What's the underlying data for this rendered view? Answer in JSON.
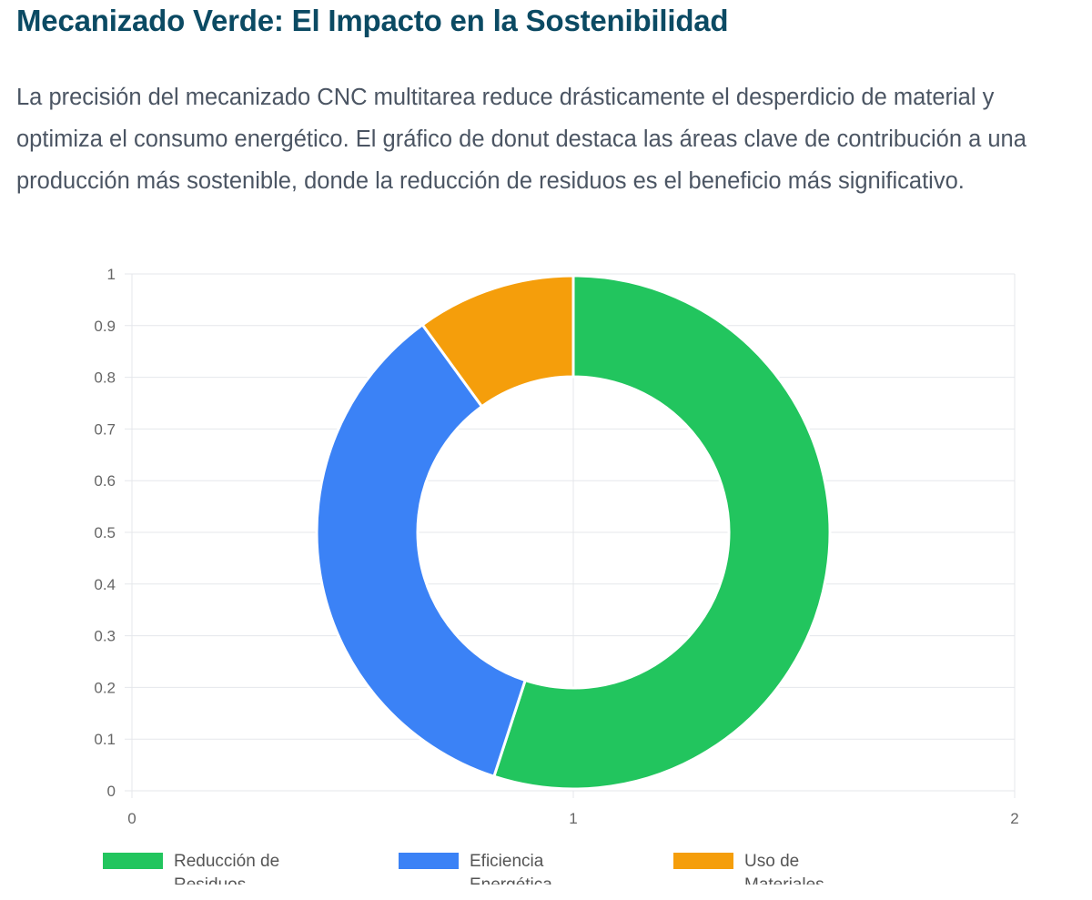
{
  "title": "Mecanizado Verde: El Impacto en la Sostenibilidad",
  "description": "La precisión del mecanizado CNC multitarea reduce drásticamente el desperdicio de material y optimiza el consumo energético. El gráfico de donut destaca las áreas clave de contribución a una producción más sostenible, donde la reducción de residuos es el beneficio más significativo.",
  "chart_data": {
    "type": "pie",
    "variant": "donut",
    "categories": [
      "Reducción de Residuos",
      "Eficiencia Energética",
      "Uso de Materiales"
    ],
    "values": [
      55,
      35,
      10
    ],
    "colors": [
      "#22c55e",
      "#3b82f6",
      "#f59e0b"
    ],
    "y_ticks": [
      "0",
      "0.1",
      "0.2",
      "0.3",
      "0.4",
      "0.5",
      "0.6",
      "0.7",
      "0.8",
      "0.9",
      "1"
    ],
    "x_ticks": [
      "0",
      "1",
      "2"
    ],
    "ylim": [
      0,
      1
    ],
    "xlim": [
      0,
      2
    ],
    "grid": true,
    "legend": {
      "position": "bottom",
      "entries": [
        {
          "line1": "Reducción de",
          "line2": "Residuos"
        },
        {
          "line1": "Eficiencia",
          "line2": "Energética"
        },
        {
          "line1": "Uso de",
          "line2": "Materiales"
        }
      ]
    }
  }
}
